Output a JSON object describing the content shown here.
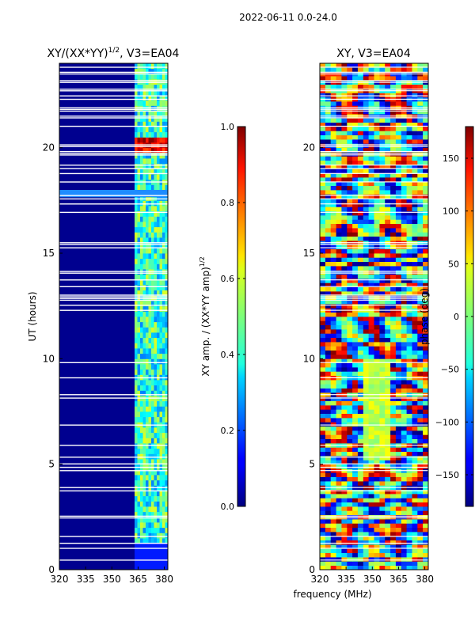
{
  "suptitle": "2022-06-11 0.0-24.0",
  "chart_data": [
    {
      "type": "heatmap",
      "title": "XY/(XX*YY)",
      "title_exp": "1/2",
      "title_tail": ", V3=EA04",
      "ylabel": "UT (hours)",
      "x_ticks": [
        "320",
        "335",
        "350",
        "365",
        "380"
      ],
      "x_tick_values": [
        320,
        335,
        350,
        365,
        380
      ],
      "y_ticks": [
        "0",
        "5",
        "10",
        "15",
        "20"
      ],
      "y_tick_values": [
        0,
        5,
        10,
        15,
        20
      ],
      "xlim": [
        320,
        382
      ],
      "ylim": [
        0,
        24
      ],
      "colorbar": {
        "label_main": "XY amp. / (XX*YY amp)",
        "label_exp": "1/2",
        "ticks": [
          "0.0",
          "0.2",
          "0.4",
          "0.6",
          "0.8",
          "1.0"
        ],
        "tick_values": [
          0.0,
          0.2,
          0.4,
          0.6,
          0.8,
          1.0
        ],
        "range": [
          0,
          1
        ]
      }
    },
    {
      "type": "heatmap",
      "title": "XY, V3=EA04",
      "xlabel": "frequency (MHz)",
      "x_ticks": [
        "320",
        "335",
        "350",
        "365",
        "380"
      ],
      "x_tick_values": [
        320,
        335,
        350,
        365,
        380
      ],
      "y_ticks": [
        "0",
        "5",
        "10",
        "15",
        "20"
      ],
      "y_tick_values": [
        0,
        5,
        10,
        15,
        20
      ],
      "xlim": [
        320,
        382
      ],
      "ylim": [
        0,
        24
      ],
      "colorbar": {
        "label": "phase (deg)",
        "ticks": [
          "150",
          "100",
          "50",
          "0",
          "−50",
          "−100",
          "−150"
        ],
        "tick_values": [
          150,
          100,
          50,
          0,
          -50,
          -100,
          -150
        ],
        "range": [
          -180,
          180
        ]
      }
    }
  ]
}
